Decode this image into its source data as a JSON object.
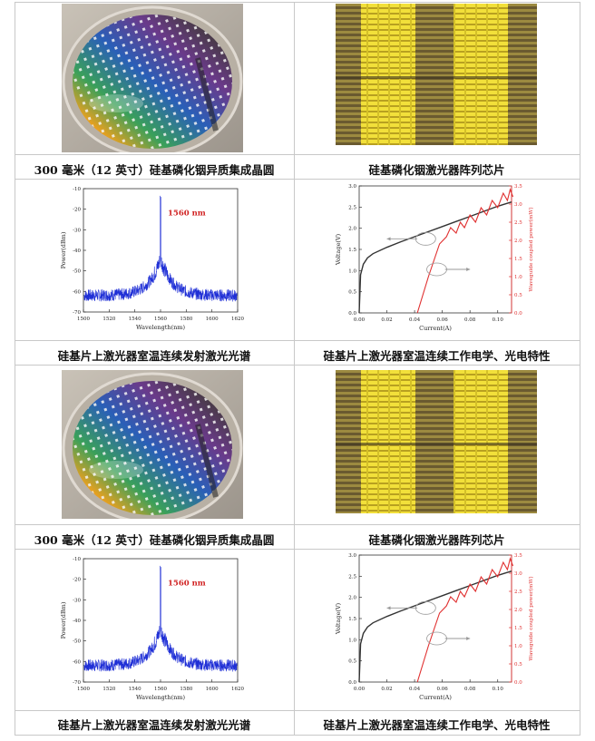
{
  "rows": [
    {
      "left_caption": "300 毫米（12 英寸）硅基磷化铟异质集成晶圆",
      "right_caption": "硅基磷化铟激光器阵列芯片"
    },
    {
      "left_caption": "硅基片上激光器室温连续发射激光光谱",
      "right_caption": "硅基片上激光器室温连续工作电学、光电特性"
    },
    {
      "left_caption": "300 毫米（12 英寸）硅基磷化铟异质集成晶圆",
      "right_caption": "硅基磷化铟激光器阵列芯片"
    },
    {
      "left_caption": "硅基片上激光器室温连续发射激光光谱",
      "right_caption": "硅基片上激光器室温连续工作电学、光电特性"
    }
  ],
  "chart_data": [
    {
      "type": "line",
      "title": "",
      "annotation": "1560 nm",
      "xlabel": "Wavelength(nm)",
      "ylabel": "Power(dBm)",
      "xlim": [
        1500,
        1620
      ],
      "ylim": [
        -70,
        -10
      ],
      "x_ticks": [
        "1500",
        "1520",
        "1540",
        "1560",
        "1580",
        "1600",
        "1620"
      ],
      "y_ticks": [
        "-10",
        "-20",
        "-30",
        "-40",
        "-50",
        "-60",
        "-70"
      ],
      "peak": {
        "x": 1560,
        "y": -16
      },
      "series": [
        {
          "name": "spectrum",
          "color": "#1f2fd6"
        }
      ]
    },
    {
      "type": "line",
      "title": "",
      "xlabel": "Current(A)",
      "ylabel": "Voltage(V)",
      "y2label": "Waveguide coupled power(mW)",
      "xlim": [
        0,
        0.11
      ],
      "ylim": [
        0,
        3.0
      ],
      "y2lim": [
        0,
        3.5
      ],
      "x_ticks": [
        "0.00",
        "0.02",
        "0.04",
        "0.06",
        "0.08",
        "0.10"
      ],
      "y_ticks": [
        "0.0",
        "0.5",
        "1.0",
        "1.5",
        "2.0",
        "2.5",
        "3.0"
      ],
      "y2_ticks": [
        "0.0",
        "0.5",
        "1.0",
        "1.5",
        "2.0",
        "2.5",
        "3.0",
        "3.5"
      ],
      "series": [
        {
          "name": "Voltage",
          "color": "#333333",
          "x": [
            0,
            0.001,
            0.003,
            0.006,
            0.01,
            0.02,
            0.03,
            0.04,
            0.05,
            0.06,
            0.07,
            0.08,
            0.09,
            0.1,
            0.11
          ],
          "y": [
            0,
            0.9,
            1.15,
            1.3,
            1.4,
            1.55,
            1.68,
            1.8,
            1.92,
            2.04,
            2.16,
            2.28,
            2.4,
            2.52,
            2.62
          ]
        },
        {
          "name": "Waveguide coupled power",
          "color": "#e03030",
          "x": [
            0.042,
            0.05,
            0.058,
            0.063,
            0.066,
            0.07,
            0.073,
            0.076,
            0.08,
            0.084,
            0.088,
            0.092,
            0.096,
            0.1,
            0.104,
            0.107,
            0.109,
            0.111
          ],
          "y": [
            0,
            1.0,
            1.9,
            2.1,
            2.35,
            2.2,
            2.5,
            2.35,
            2.7,
            2.5,
            2.9,
            2.7,
            3.1,
            2.9,
            3.3,
            3.1,
            3.4,
            3.2
          ]
        }
      ]
    }
  ]
}
